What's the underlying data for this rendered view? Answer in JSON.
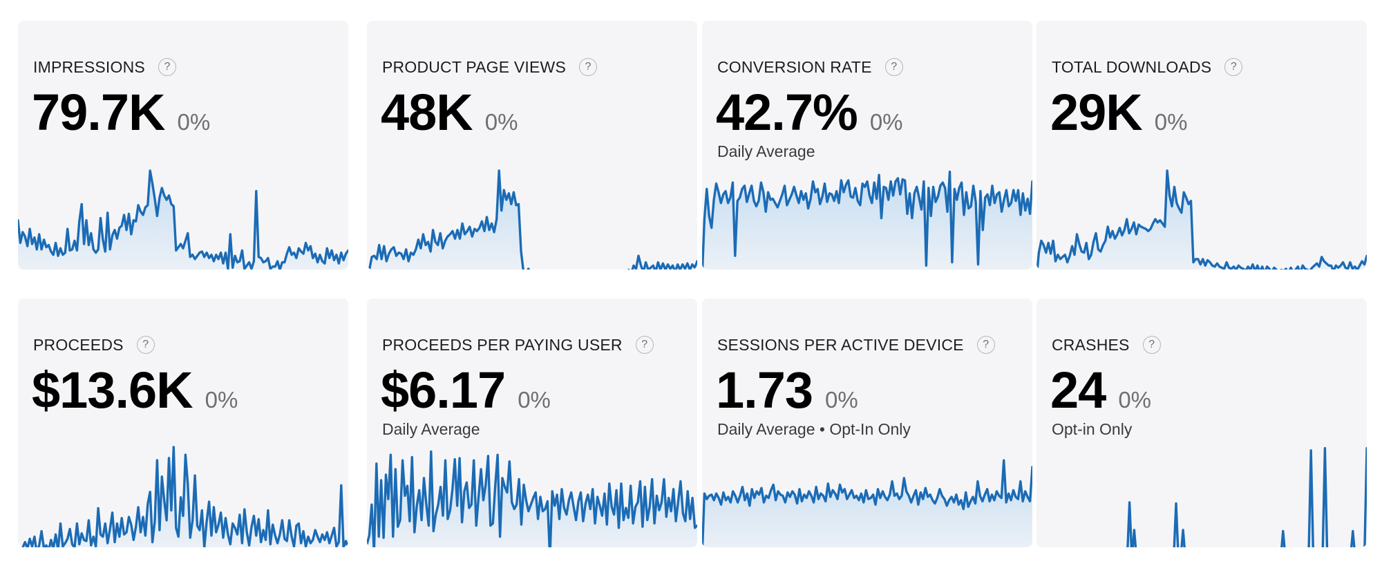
{
  "dashboard": {
    "metrics": [
      {
        "key": "impressions",
        "title": "IMPRESSIONS",
        "value": "79.7K",
        "change": "0%",
        "subtitle": "",
        "help": "?"
      },
      {
        "key": "product-page-views",
        "title": "PRODUCT PAGE VIEWS",
        "value": "48K",
        "change": "0%",
        "subtitle": "",
        "help": "?"
      },
      {
        "key": "conversion-rate",
        "title": "CONVERSION RATE",
        "value": "42.7%",
        "change": "0%",
        "subtitle": "Daily Average",
        "help": "?"
      },
      {
        "key": "total-downloads",
        "title": "TOTAL DOWNLOADS",
        "value": "29K",
        "change": "0%",
        "subtitle": "",
        "help": "?"
      },
      {
        "key": "proceeds",
        "title": "PROCEEDS",
        "value": "$13.6K",
        "change": "0%",
        "subtitle": "",
        "help": "?"
      },
      {
        "key": "proceeds-per-paying-user",
        "title": "PROCEEDS PER PAYING USER",
        "value": "$6.17",
        "change": "0%",
        "subtitle": "Daily Average",
        "help": "?"
      },
      {
        "key": "sessions-per-active-device",
        "title": "SESSIONS PER ACTIVE DEVICE",
        "value": "1.73",
        "change": "0%",
        "subtitle": "Daily Average • Opt-In Only",
        "help": "?"
      },
      {
        "key": "crashes",
        "title": "CRASHES",
        "value": "24",
        "change": "0%",
        "subtitle": "Opt-in Only",
        "help": "?"
      }
    ]
  },
  "colors": {
    "card_background": "#f5f5f7",
    "sparkline_stroke": "#1b6bb5",
    "sparkline_fill": "#4aa0e6",
    "title_text": "#1d1d1f",
    "value_text": "#000000",
    "change_text": "#6e6e73"
  },
  "chart_data": [
    {
      "type": "area",
      "title": "IMPRESSIONS",
      "ylim": [
        0,
        1
      ],
      "values": [
        0.54,
        0.33,
        0.43,
        0.39,
        0.3,
        0.46,
        0.32,
        0.38,
        0.27,
        0.41,
        0.27,
        0.36,
        0.29,
        0.31,
        0.25,
        0.22,
        0.33,
        0.21,
        0.28,
        0.22,
        0.24,
        0.46,
        0.26,
        0.27,
        0.35,
        0.26,
        0.53,
        0.69,
        0.32,
        0.54,
        0.31,
        0.42,
        0.27,
        0.24,
        0.27,
        0.56,
        0.36,
        0.25,
        0.61,
        0.27,
        0.4,
        0.45,
        0.37,
        0.47,
        0.49,
        0.59,
        0.45,
        0.6,
        0.41,
        0.54,
        0.53,
        0.68,
        0.62,
        0.59,
        0.66,
        0.68,
        1.0,
        0.88,
        0.74,
        0.58,
        0.75,
        0.84,
        0.77,
        0.73,
        0.77,
        0.69,
        0.67,
        0.26,
        0.29,
        0.32,
        0.28,
        0.35,
        0.42,
        0.2,
        0.22,
        0.18,
        0.21,
        0.24,
        0.25,
        0.2,
        0.24,
        0.19,
        0.22,
        0.16,
        0.22,
        0.18,
        0.24,
        0.14,
        0.24,
        0.09,
        0.41,
        0.1,
        0.21,
        0.15,
        0.16,
        0.26,
        0.09,
        0.12,
        0.15,
        0.09,
        0.16,
        0.81,
        0.2,
        0.19,
        0.15,
        0.16,
        0.19,
        0.09,
        0.11,
        0.11,
        0.16,
        0.08,
        0.15,
        0.15,
        0.23,
        0.29,
        0.22,
        0.24,
        0.19,
        0.28,
        0.25,
        0.23,
        0.33,
        0.26,
        0.3,
        0.19,
        0.23,
        0.15,
        0.22,
        0.16,
        0.14,
        0.28,
        0.19,
        0.26,
        0.17,
        0.22,
        0.14,
        0.24,
        0.17,
        0.23,
        0.26
      ]
    },
    {
      "type": "area",
      "title": "PRODUCT PAGE VIEWS",
      "ylim": [
        0,
        1
      ],
      "values": [
        0.0,
        0.08,
        0.2,
        0.21,
        0.18,
        0.31,
        0.18,
        0.3,
        0.16,
        0.23,
        0.27,
        0.29,
        0.21,
        0.24,
        0.23,
        0.18,
        0.27,
        0.16,
        0.24,
        0.22,
        0.27,
        0.36,
        0.28,
        0.41,
        0.31,
        0.34,
        0.25,
        0.45,
        0.34,
        0.31,
        0.42,
        0.28,
        0.35,
        0.39,
        0.41,
        0.44,
        0.37,
        0.45,
        0.37,
        0.51,
        0.41,
        0.44,
        0.48,
        0.39,
        0.46,
        0.44,
        0.47,
        0.53,
        0.44,
        0.57,
        0.45,
        0.51,
        0.43,
        0.55,
        1.0,
        0.63,
        0.82,
        0.73,
        0.79,
        0.69,
        0.8,
        0.68,
        0.69,
        0.25,
        0.06,
        0.05,
        0.09,
        0.05,
        0.07,
        0.05,
        0.07,
        0.04,
        0.06,
        0.03,
        0.05,
        0.02,
        0.05,
        0.02,
        0.04,
        0.02,
        0.05,
        0.03,
        0.04,
        0.05,
        0.02,
        0.04,
        0.06,
        0.03,
        0.05,
        0.02,
        0.05,
        0.03,
        0.06,
        0.04,
        0.02,
        0.05,
        0.03,
        0.04,
        0.05,
        0.03,
        0.06,
        0.05,
        0.02,
        0.04,
        0.05,
        0.06,
        0.04,
        0.08,
        0.04,
        0.12,
        0.09,
        0.21,
        0.12,
        0.06,
        0.15,
        0.08,
        0.1,
        0.12,
        0.06,
        0.15,
        0.08,
        0.14,
        0.08,
        0.13,
        0.09,
        0.12,
        0.06,
        0.13,
        0.08,
        0.13,
        0.09,
        0.14,
        0.08,
        0.13,
        0.1,
        0.16
      ]
    },
    {
      "type": "area",
      "title": "CONVERSION RATE",
      "ylim": [
        0,
        1
      ],
      "values": [
        0.0,
        0.55,
        0.83,
        0.58,
        0.47,
        0.73,
        0.88,
        0.8,
        0.7,
        0.78,
        0.81,
        0.7,
        0.75,
        0.89,
        0.21,
        0.72,
        0.75,
        0.83,
        0.86,
        0.71,
        0.79,
        0.86,
        0.72,
        0.67,
        0.72,
        0.89,
        0.8,
        0.62,
        0.8,
        0.73,
        0.74,
        0.7,
        0.66,
        0.72,
        0.78,
        0.86,
        0.68,
        0.73,
        0.78,
        0.85,
        0.77,
        0.7,
        0.81,
        0.73,
        0.79,
        0.65,
        0.74,
        0.9,
        0.8,
        0.83,
        0.69,
        0.76,
        0.88,
        0.71,
        0.79,
        0.78,
        0.72,
        0.81,
        0.7,
        0.91,
        0.8,
        0.87,
        0.91,
        0.76,
        0.75,
        0.84,
        0.72,
        0.68,
        0.88,
        0.85,
        0.9,
        0.77,
        0.7,
        0.89,
        0.74,
        0.96,
        0.56,
        0.85,
        0.84,
        0.73,
        0.9,
        0.77,
        0.9,
        0.93,
        0.78,
        0.92,
        0.91,
        0.6,
        0.79,
        0.56,
        0.79,
        0.85,
        0.75,
        0.64,
        0.9,
        0.12,
        0.84,
        0.58,
        0.85,
        0.71,
        0.76,
        0.86,
        0.89,
        0.84,
        0.62,
        0.99,
        0.15,
        0.83,
        0.73,
        0.84,
        0.89,
        0.59,
        0.8,
        0.65,
        0.67,
        0.86,
        0.71,
        0.13,
        0.81,
        0.45,
        0.75,
        0.78,
        0.68,
        0.86,
        0.7,
        0.78,
        0.8,
        0.62,
        0.73,
        0.82,
        0.67,
        0.7,
        0.82,
        0.72,
        0.82,
        0.59,
        0.79,
        0.63,
        0.74,
        0.6,
        0.9
      ]
    },
    {
      "type": "area",
      "title": "TOTAL DOWNLOADS",
      "ylim": [
        0,
        1
      ],
      "values": [
        0.0,
        0.24,
        0.35,
        0.31,
        0.24,
        0.33,
        0.23,
        0.35,
        0.16,
        0.22,
        0.18,
        0.2,
        0.22,
        0.15,
        0.21,
        0.3,
        0.22,
        0.41,
        0.32,
        0.25,
        0.24,
        0.33,
        0.18,
        0.22,
        0.34,
        0.42,
        0.27,
        0.25,
        0.31,
        0.35,
        0.48,
        0.38,
        0.44,
        0.37,
        0.41,
        0.47,
        0.4,
        0.45,
        0.55,
        0.42,
        0.46,
        0.52,
        0.41,
        0.5,
        0.48,
        0.47,
        0.46,
        0.44,
        0.46,
        0.51,
        0.55,
        0.52,
        0.54,
        0.51,
        0.48,
        1.0,
        0.77,
        0.67,
        0.85,
        0.7,
        0.65,
        0.61,
        0.8,
        0.75,
        0.69,
        0.72,
        0.15,
        0.18,
        0.18,
        0.13,
        0.18,
        0.12,
        0.17,
        0.15,
        0.12,
        0.11,
        0.14,
        0.11,
        0.1,
        0.09,
        0.15,
        0.1,
        0.09,
        0.11,
        0.08,
        0.12,
        0.1,
        0.09,
        0.07,
        0.11,
        0.08,
        0.13,
        0.07,
        0.12,
        0.06,
        0.11,
        0.05,
        0.11,
        0.09,
        0.06,
        0.1,
        0.08,
        0.04,
        0.08,
        0.07,
        0.09,
        0.05,
        0.1,
        0.06,
        0.08,
        0.11,
        0.05,
        0.12,
        0.09,
        0.08,
        0.07,
        0.1,
        0.12,
        0.14,
        0.11,
        0.2,
        0.16,
        0.14,
        0.12,
        0.12,
        0.07,
        0.12,
        0.1,
        0.12,
        0.15,
        0.1,
        0.09,
        0.15,
        0.09,
        0.11,
        0.08,
        0.12,
        0.16,
        0.13,
        0.21
      ]
    },
    {
      "type": "area",
      "title": "PROCEEDS",
      "ylim": [
        0,
        1
      ],
      "values": [
        0.02,
        0.04,
        0.08,
        0.13,
        0.07,
        0.16,
        0.09,
        0.18,
        0.03,
        0.1,
        0.23,
        0.07,
        0.1,
        0.05,
        0.15,
        0.07,
        0.2,
        0.06,
        0.3,
        0.09,
        0.12,
        0.16,
        0.25,
        0.11,
        0.08,
        0.3,
        0.11,
        0.21,
        0.15,
        0.14,
        0.33,
        0.1,
        0.18,
        0.09,
        0.44,
        0.2,
        0.18,
        0.3,
        0.12,
        0.25,
        0.4,
        0.13,
        0.3,
        0.18,
        0.35,
        0.2,
        0.22,
        0.36,
        0.29,
        0.15,
        0.27,
        0.45,
        0.22,
        0.36,
        0.19,
        0.48,
        0.59,
        0.13,
        0.32,
        0.88,
        0.24,
        0.73,
        0.51,
        0.33,
        0.9,
        0.42,
        1.0,
        0.26,
        0.18,
        0.54,
        0.37,
        0.93,
        0.66,
        0.17,
        0.33,
        0.74,
        0.28,
        0.24,
        0.42,
        0.08,
        0.32,
        0.5,
        0.19,
        0.45,
        0.22,
        0.29,
        0.4,
        0.17,
        0.35,
        0.2,
        0.11,
        0.3,
        0.26,
        0.2,
        0.38,
        0.12,
        0.43,
        0.22,
        0.1,
        0.27,
        0.37,
        0.19,
        0.34,
        0.13,
        0.24,
        0.15,
        0.42,
        0.11,
        0.29,
        0.19,
        0.12,
        0.2,
        0.33,
        0.16,
        0.14,
        0.33,
        0.18,
        0.09,
        0.28,
        0.3,
        0.12,
        0.23,
        0.09,
        0.18,
        0.12,
        0.15,
        0.24,
        0.18,
        0.13,
        0.2,
        0.15,
        0.22,
        0.12,
        0.19,
        0.26,
        0.09,
        0.13,
        0.65,
        0.08,
        0.14,
        0.08
      ]
    },
    {
      "type": "area",
      "title": "PROCEEDS PER PAYING USER",
      "ylim": [
        0,
        1
      ],
      "values": [
        0.12,
        0.2,
        0.48,
        0.05,
        0.85,
        0.19,
        0.7,
        0.18,
        0.75,
        0.53,
        0.93,
        0.19,
        0.8,
        0.28,
        0.34,
        0.88,
        0.56,
        0.65,
        0.33,
        0.91,
        0.23,
        0.47,
        0.61,
        0.34,
        0.72,
        0.48,
        0.29,
        0.96,
        0.24,
        0.39,
        0.48,
        0.64,
        0.38,
        0.88,
        0.35,
        0.43,
        0.62,
        0.89,
        0.47,
        0.9,
        0.32,
        0.6,
        0.68,
        0.45,
        0.48,
        0.88,
        0.29,
        0.55,
        0.8,
        0.52,
        0.66,
        0.92,
        0.29,
        0.31,
        0.65,
        0.93,
        0.19,
        0.72,
        0.64,
        0.59,
        0.87,
        0.5,
        0.44,
        0.48,
        0.71,
        0.3,
        0.66,
        0.52,
        0.42,
        0.48,
        0.54,
        0.59,
        0.35,
        0.55,
        0.42,
        0.44,
        0.51,
        0.0,
        0.6,
        0.47,
        0.57,
        0.35,
        0.62,
        0.45,
        0.39,
        0.52,
        0.59,
        0.46,
        0.34,
        0.51,
        0.59,
        0.33,
        0.49,
        0.57,
        0.44,
        0.62,
        0.31,
        0.55,
        0.47,
        0.38,
        0.58,
        0.3,
        0.67,
        0.46,
        0.39,
        0.61,
        0.27,
        0.67,
        0.34,
        0.45,
        0.36,
        0.65,
        0.31,
        0.46,
        0.5,
        0.69,
        0.28,
        0.64,
        0.34,
        0.46,
        0.71,
        0.31,
        0.56,
        0.43,
        0.5,
        0.71,
        0.37,
        0.54,
        0.42,
        0.62,
        0.33,
        0.51,
        0.69,
        0.4,
        0.33,
        0.6,
        0.35,
        0.54,
        0.27,
        0.29
      ]
    },
    {
      "type": "area",
      "title": "SESSIONS PER ACTIVE DEVICE",
      "ylim": [
        0,
        1
      ],
      "values": [
        0.0,
        0.58,
        0.53,
        0.56,
        0.57,
        0.52,
        0.58,
        0.54,
        0.48,
        0.59,
        0.52,
        0.55,
        0.5,
        0.6,
        0.56,
        0.5,
        0.56,
        0.64,
        0.52,
        0.58,
        0.47,
        0.62,
        0.54,
        0.6,
        0.57,
        0.63,
        0.5,
        0.56,
        0.54,
        0.61,
        0.66,
        0.52,
        0.6,
        0.57,
        0.56,
        0.5,
        0.59,
        0.55,
        0.6,
        0.57,
        0.49,
        0.62,
        0.51,
        0.57,
        0.54,
        0.6,
        0.56,
        0.5,
        0.64,
        0.53,
        0.58,
        0.56,
        0.51,
        0.67,
        0.55,
        0.61,
        0.58,
        0.53,
        0.66,
        0.59,
        0.62,
        0.53,
        0.57,
        0.61,
        0.54,
        0.56,
        0.52,
        0.58,
        0.5,
        0.61,
        0.53,
        0.54,
        0.57,
        0.48,
        0.62,
        0.54,
        0.6,
        0.55,
        0.52,
        0.57,
        0.69,
        0.56,
        0.58,
        0.53,
        0.56,
        0.72,
        0.6,
        0.56,
        0.5,
        0.56,
        0.61,
        0.48,
        0.59,
        0.53,
        0.63,
        0.55,
        0.57,
        0.52,
        0.49,
        0.54,
        0.62,
        0.56,
        0.53,
        0.47,
        0.52,
        0.55,
        0.5,
        0.57,
        0.48,
        0.52,
        0.44,
        0.59,
        0.46,
        0.51,
        0.55,
        0.49,
        0.69,
        0.56,
        0.51,
        0.57,
        0.62,
        0.51,
        0.57,
        0.52,
        0.6,
        0.56,
        0.54,
        0.88,
        0.5,
        0.58,
        0.52,
        0.61,
        0.55,
        0.53,
        0.69,
        0.51,
        0.6,
        0.55,
        0.51,
        0.82
      ]
    },
    {
      "type": "area",
      "title": "CRASHES",
      "ylim": [
        0,
        1
      ],
      "values": [
        0.0,
        0.0,
        0.0,
        0.0,
        0.0,
        0.0,
        0.0,
        0.0,
        0.0,
        0.0,
        0.0,
        0.0,
        0.0,
        0.0,
        0.0,
        0.0,
        0.0,
        0.0,
        0.0,
        0.0,
        0.0,
        0.0,
        0.0,
        0.0,
        0.0,
        0.0,
        0.0,
        0.0,
        0.0,
        0.0,
        0.0,
        0.0,
        0.0,
        0.0,
        0.0,
        0.0,
        0.0,
        0.0,
        0.0,
        0.0,
        0.5,
        0.0,
        0.25,
        0.0,
        0.0,
        0.0,
        0.0,
        0.0,
        0.0,
        0.0,
        0.0,
        0.0,
        0.0,
        0.0,
        0.0,
        0.0,
        0.0,
        0.0,
        0.0,
        0.0,
        0.49,
        0.0,
        0.0,
        0.25,
        0.0,
        0.0,
        0.0,
        0.0,
        0.0,
        0.0,
        0.0,
        0.0,
        0.0,
        0.0,
        0.0,
        0.0,
        0.0,
        0.0,
        0.0,
        0.0,
        0.0,
        0.0,
        0.0,
        0.0,
        0.0,
        0.0,
        0.0,
        0.0,
        0.0,
        0.0,
        0.0,
        0.0,
        0.0,
        0.0,
        0.0,
        0.0,
        0.0,
        0.0,
        0.0,
        0.0,
        0.0,
        0.0,
        0.0,
        0.0,
        0.0,
        0.0,
        0.24,
        0.0,
        0.0,
        0.0,
        0.0,
        0.0,
        0.0,
        0.0,
        0.0,
        0.0,
        0.0,
        0.0,
        0.97,
        0.0,
        0.0,
        0.0,
        0.0,
        0.0,
        0.99,
        0.0,
        0.0,
        0.0,
        0.0,
        0.0,
        0.0,
        0.0,
        0.0,
        0.0,
        0.0,
        0.0,
        0.24,
        0.0,
        0.0,
        0.0,
        0.0,
        0.0,
        0.99
      ]
    }
  ]
}
